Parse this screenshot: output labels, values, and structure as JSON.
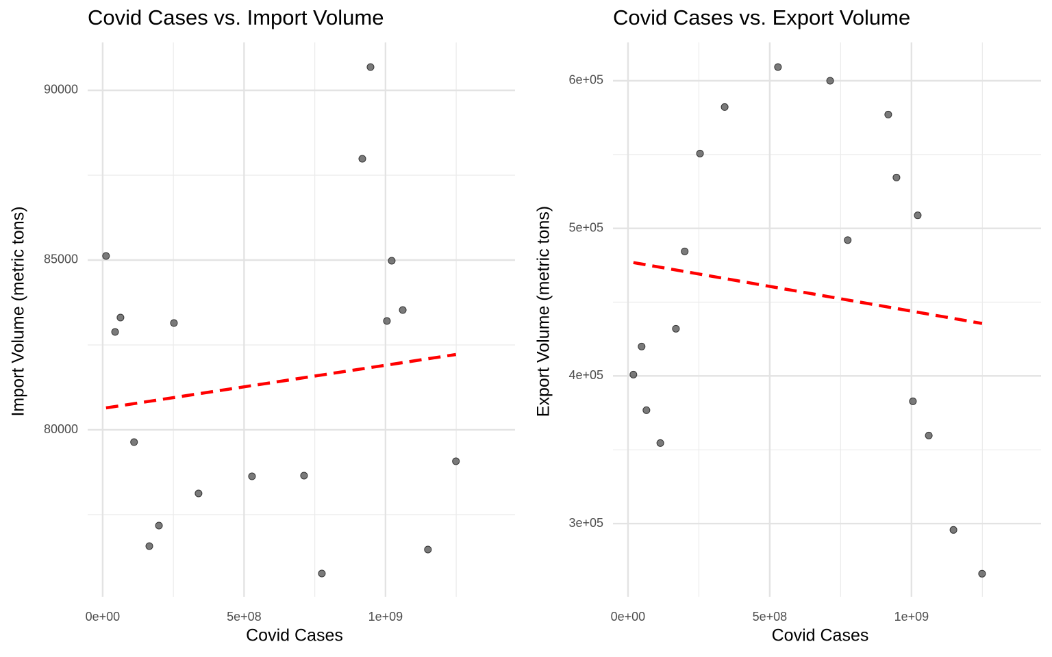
{
  "chart_data": [
    {
      "type": "scatter",
      "title": "Covid Cases vs. Import Volume",
      "x_label": "Covid Cases",
      "y_label": "Import Volume (metric tons)",
      "xlim": [
        -53000000,
        1458000000
      ],
      "ylim": [
        75081,
        91411
      ],
      "xticks": [
        {
          "value": 0,
          "label": "0e+00"
        },
        {
          "value": 500000000,
          "label": "5e+08"
        },
        {
          "value": 1000000000,
          "label": "1e+09"
        }
      ],
      "minor_xticks": [
        250000000,
        750000000,
        1250000000
      ],
      "yticks": [
        80000,
        85000,
        90000
      ],
      "minor_yticks": [
        77500,
        82500,
        87500
      ],
      "grid": true,
      "color": "#595959",
      "x": [
        12000000,
        44000000,
        63000000,
        111000000,
        199000000,
        165000000,
        252000000,
        339000000,
        528000000,
        712000000,
        775000000,
        918000000,
        947000000,
        1005000000,
        1022000000,
        1061000000,
        1150000000,
        1249000000
      ],
      "values": [
        85121,
        82883,
        83306,
        79637,
        77177,
        76573,
        83145,
        78125,
        78629,
        78649,
        75766,
        87984,
        90685,
        83205,
        84980,
        83528,
        76472,
        79073
      ],
      "trend": {
        "color": "#ff0000",
        "x": [
          12000000,
          1249000000
        ],
        "values": [
          80645,
          82218
        ]
      }
    },
    {
      "type": "scatter",
      "title": "Covid Cases vs. Export Volume",
      "x_label": "Covid Cases",
      "y_label": "Export Volume (metric tons)",
      "xlim": [
        -53000000,
        1457000000
      ],
      "ylim": [
        250395,
        625960
      ],
      "xticks": [
        {
          "value": 0,
          "label": "0e+00"
        },
        {
          "value": 500000000,
          "label": "5e+08"
        },
        {
          "value": 1000000000,
          "label": "1e+09"
        }
      ],
      "minor_xticks": [
        250000000,
        750000000,
        1250000000
      ],
      "yticks": [
        {
          "value": 300000,
          "label": "3e+05"
        },
        {
          "value": 400000,
          "label": "4e+05"
        },
        {
          "value": 500000,
          "label": "5e+05"
        },
        {
          "value": 600000,
          "label": "6e+05"
        }
      ],
      "minor_yticks": [
        350000,
        450000,
        550000
      ],
      "grid": true,
      "color": "#595959",
      "x": [
        19000000,
        48000000,
        65000000,
        114000000,
        169000000,
        200000000,
        254000000,
        341000000,
        529000000,
        713000000,
        775000000,
        918000000,
        947000000,
        1005000000,
        1022000000,
        1061000000,
        1148000000,
        1249000000
      ],
      "values": [
        400927,
        419936,
        376820,
        354567,
        431990,
        484378,
        550672,
        582198,
        609272,
        600000,
        492030,
        577099,
        534446,
        382847,
        508800,
        359667,
        295690,
        266019
      ],
      "trend": {
        "color": "#ff0000",
        "x": [
          19000000,
          1249000000
        ],
        "values": [
          476820,
          435560
        ]
      }
    }
  ]
}
